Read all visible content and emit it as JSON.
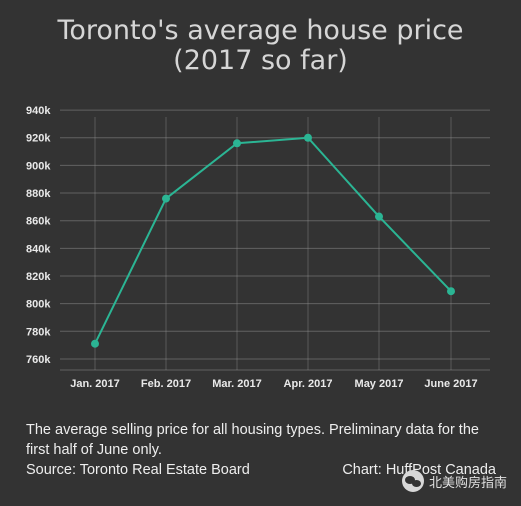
{
  "title_line1": "Toronto's average house price",
  "title_line2": "(2017 so far)",
  "footer": {
    "description": "The average selling price for all housing types. Preliminary data for the first half of June only.",
    "source": "Source: Toronto Real Estate Board",
    "credit": "Chart: HuffPost Canada"
  },
  "watermark": {
    "text": "北美购房指南",
    "icon": "wechat-icon"
  },
  "colors": {
    "background": "#333333",
    "line": "#2bb594",
    "grid": "#8a8a8a",
    "text": "#e9e9e9"
  },
  "chart_data": {
    "type": "line",
    "categories": [
      "Jan. 2017",
      "Feb. 2017",
      "Mar. 2017",
      "Apr. 2017",
      "May 2017",
      "June 2017"
    ],
    "series": [
      {
        "values": [
          771,
          876,
          916,
          920,
          863,
          809
        ]
      }
    ],
    "y_tick_labels": [
      "760k",
      "780k",
      "800k",
      "820k",
      "840k",
      "860k",
      "880k",
      "900k",
      "920k",
      "940k"
    ],
    "y_tick_values": [
      760,
      780,
      800,
      820,
      840,
      860,
      880,
      900,
      920,
      940
    ],
    "ylim": [
      752,
      935
    ],
    "grid": true
  }
}
